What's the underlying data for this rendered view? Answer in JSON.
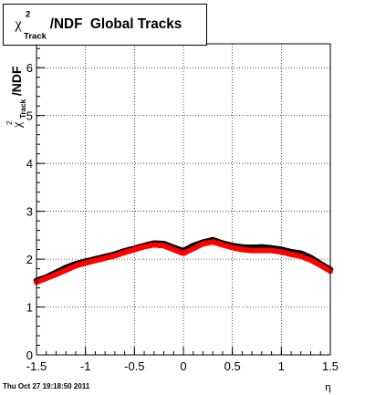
{
  "chart_data": {
    "type": "scatter",
    "title": "χ²_Track/NDF  Global Tracks",
    "title_parts": {
      "chi": "χ",
      "sup": "2",
      "sub": "Track",
      "rest": "/NDF  Global Tracks"
    },
    "xlabel": "η",
    "ylabel": "χ²_Track/NDF",
    "ylabel_parts": {
      "chi": "χ",
      "sup": "2",
      "sub": "Track",
      "rest": "/NDF"
    },
    "xlim": [
      -1.5,
      1.5
    ],
    "ylim": [
      0,
      6.5
    ],
    "x_ticks": [
      "-1.5",
      "-1",
      "-0.5",
      "0",
      "0.5",
      "1",
      "1.5"
    ],
    "x_tick_values": [
      -1.5,
      -1.0,
      -0.5,
      0,
      0.5,
      1.0,
      1.5
    ],
    "y_ticks": [
      "0",
      "1",
      "2",
      "3",
      "4",
      "5",
      "6"
    ],
    "y_tick_values": [
      0,
      1,
      2,
      3,
      4,
      5,
      6
    ],
    "grid": true,
    "series": [
      {
        "color": "#000000",
        "x": [
          -1.5,
          -1.4,
          -1.3,
          -1.2,
          -1.1,
          -1.0,
          -0.9,
          -0.8,
          -0.7,
          -0.6,
          -0.5,
          -0.4,
          -0.3,
          -0.2,
          -0.1,
          0.0,
          0.1,
          0.2,
          0.3,
          0.4,
          0.5,
          0.6,
          0.7,
          0.8,
          0.9,
          1.0,
          1.1,
          1.2,
          1.3,
          1.4,
          1.5
        ],
        "y": [
          1.55,
          1.62,
          1.72,
          1.82,
          1.9,
          1.95,
          2.0,
          2.05,
          2.1,
          2.17,
          2.22,
          2.28,
          2.33,
          2.32,
          2.24,
          2.17,
          2.28,
          2.35,
          2.4,
          2.33,
          2.28,
          2.25,
          2.24,
          2.25,
          2.23,
          2.2,
          2.15,
          2.12,
          2.03,
          1.9,
          1.78
        ]
      },
      {
        "color": "#ff0000",
        "x": [
          -1.5,
          -1.4,
          -1.3,
          -1.2,
          -1.1,
          -1.0,
          -0.9,
          -0.8,
          -0.7,
          -0.6,
          -0.5,
          -0.4,
          -0.3,
          -0.2,
          -0.1,
          0.0,
          0.1,
          0.2,
          0.3,
          0.4,
          0.5,
          0.6,
          0.7,
          0.8,
          0.9,
          1.0,
          1.1,
          1.2,
          1.3,
          1.4,
          1.5
        ],
        "y": [
          1.52,
          1.6,
          1.68,
          1.77,
          1.86,
          1.92,
          1.97,
          2.02,
          2.07,
          2.14,
          2.2,
          2.26,
          2.3,
          2.28,
          2.2,
          2.12,
          2.22,
          2.32,
          2.36,
          2.3,
          2.24,
          2.2,
          2.18,
          2.18,
          2.18,
          2.15,
          2.1,
          2.06,
          1.98,
          1.87,
          1.75
        ]
      }
    ]
  },
  "timestamp": "Thu Oct 27 19:18:50 2011"
}
